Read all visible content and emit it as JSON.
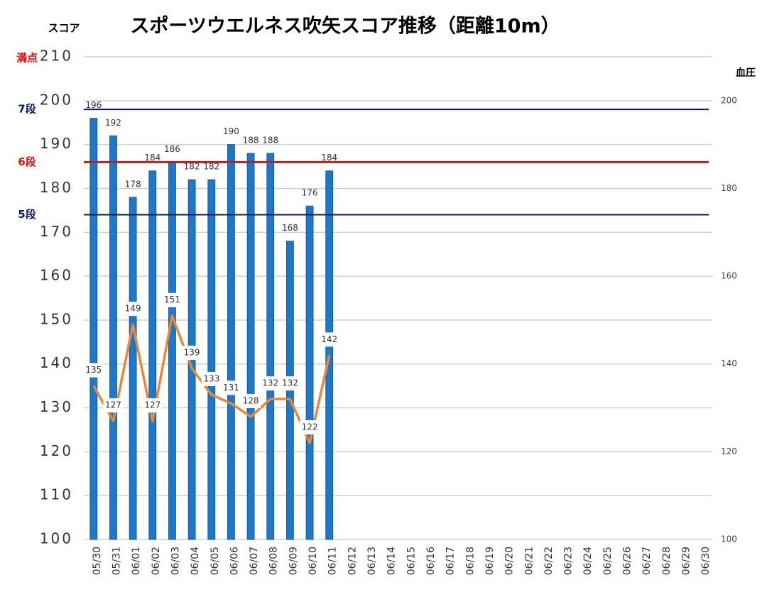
{
  "chart_data": {
    "type": "bar",
    "title": "スポーツウエルネス吹矢スコア推移（距離10m）",
    "y_label": "スコア",
    "y2_label": "血圧",
    "categories": [
      "05/30",
      "05/31",
      "06/01",
      "06/02",
      "06/03",
      "06/04",
      "06/05",
      "06/06",
      "06/07",
      "06/08",
      "06/09",
      "06/10",
      "06/11",
      "06/12",
      "06/13",
      "06/14",
      "06/15",
      "06/16",
      "06/17",
      "06/18",
      "06/19",
      "06/20",
      "06/21",
      "06/22",
      "06/23",
      "06/24",
      "06/25",
      "06/26",
      "06/27",
      "06/28",
      "06/29",
      "06/30"
    ],
    "series": [
      {
        "type": "bar",
        "color": "#1f77c8",
        "axis": "y",
        "values": [
          196,
          192,
          178,
          184,
          186,
          182,
          182,
          190,
          188,
          188,
          168,
          176,
          184,
          null,
          null,
          null,
          null,
          null,
          null,
          null,
          null,
          null,
          null,
          null,
          null,
          null,
          null,
          null,
          null,
          null,
          null,
          null
        ]
      },
      {
        "type": "line",
        "color": "#e8883a",
        "axis": "y2",
        "values": [
          135,
          127,
          149,
          127,
          151,
          139,
          133,
          131,
          128,
          132,
          132,
          122,
          142,
          null,
          null,
          null,
          null,
          null,
          null,
          null,
          null,
          null,
          null,
          null,
          null,
          null,
          null,
          null,
          null,
          null,
          null,
          null
        ]
      }
    ],
    "ylim": [
      100,
      210
    ],
    "yticks": [
      100,
      110,
      120,
      130,
      140,
      150,
      160,
      170,
      180,
      190,
      200,
      210
    ],
    "y2lim": [
      100,
      210
    ],
    "y2ticks": [
      100,
      120,
      140,
      160,
      180,
      200
    ],
    "grid": true,
    "reference_lines": [
      {
        "label": "7段",
        "value": 198,
        "color": "#0a1a5c"
      },
      {
        "label": "6段",
        "value": 186,
        "color": "#e01010"
      },
      {
        "label": "5段",
        "value": 174,
        "color": "#0a1a5c"
      }
    ],
    "axis_annotations": [
      {
        "label": "満点",
        "value": 210,
        "color": "#e01010"
      }
    ]
  }
}
